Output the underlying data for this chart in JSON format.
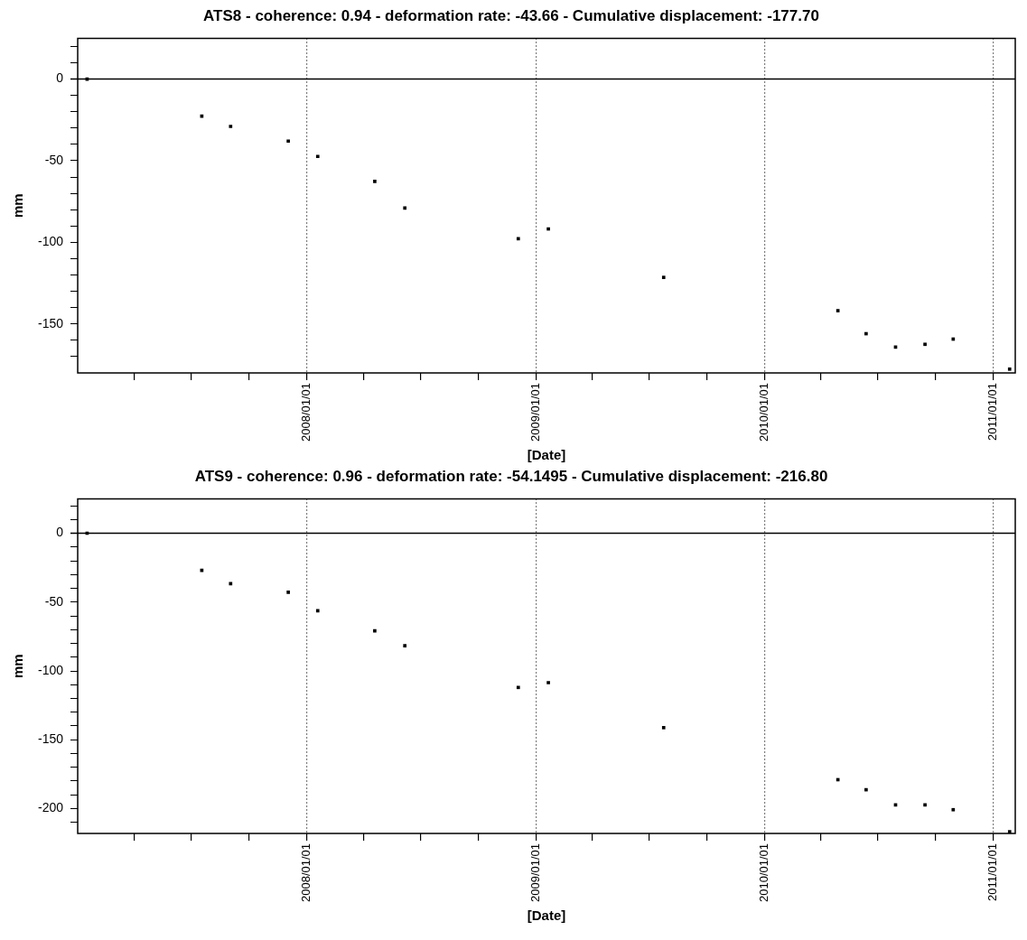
{
  "chart_data": [
    {
      "type": "scatter",
      "title": "ATS8 - coherence: 0.94 - deformation rate: -43.66 - Cumulative displacement: -177.70",
      "xlabel": "[Date]",
      "ylabel": "mm",
      "marker": "square",
      "grid": "x",
      "x": [
        "2007-01-16",
        "2007-07-18",
        "2007-09-02",
        "2007-12-03",
        "2008-01-19",
        "2008-04-19",
        "2008-06-06",
        "2008-12-04",
        "2009-01-21",
        "2009-07-24",
        "2010-04-28",
        "2010-06-12",
        "2010-07-29",
        "2010-09-14",
        "2010-10-29",
        "2011-01-27"
      ],
      "series": [
        {
          "color": "#000000",
          "values": [
            0,
            -22.7,
            -29,
            -38,
            -47.4,
            -62.7,
            -79,
            -97.8,
            -91.8,
            -121.5,
            -141.9,
            -156,
            -164.2,
            -162.5,
            -159.3,
            -177.7
          ]
        }
      ],
      "xlim": [
        "2007-01-01",
        "2011-02-05"
      ],
      "xticks": [
        {
          "value": "2007-04-01",
          "label": null
        },
        {
          "value": "2007-07-01",
          "label": null
        },
        {
          "value": "2007-10-01",
          "label": null
        },
        {
          "value": "2008-01-01",
          "label": "2008/01/01"
        },
        {
          "value": "2008-04-01",
          "label": null
        },
        {
          "value": "2008-07-01",
          "label": null
        },
        {
          "value": "2008-10-01",
          "label": null
        },
        {
          "value": "2009-01-01",
          "label": "2009/01/01"
        },
        {
          "value": "2009-04-01",
          "label": null
        },
        {
          "value": "2009-07-01",
          "label": null
        },
        {
          "value": "2009-10-01",
          "label": null
        },
        {
          "value": "2010-01-01",
          "label": "2010/01/01"
        },
        {
          "value": "2010-04-01",
          "label": null
        },
        {
          "value": "2010-07-01",
          "label": null
        },
        {
          "value": "2010-10-01",
          "label": null
        },
        {
          "value": "2011-01-01",
          "label": "2011/01/01"
        }
      ],
      "ylim": [
        -180,
        25
      ],
      "yticks": [
        {
          "value": 20,
          "label": null
        },
        {
          "value": 10,
          "label": null
        },
        0,
        {
          "value": -10,
          "label": null
        },
        {
          "value": -20,
          "label": null
        },
        {
          "value": -30,
          "label": null
        },
        {
          "value": -40,
          "label": null
        },
        -50,
        {
          "value": -60,
          "label": null
        },
        {
          "value": -70,
          "label": null
        },
        {
          "value": -80,
          "label": null
        },
        {
          "value": -90,
          "label": null
        },
        -100,
        {
          "value": -110,
          "label": null
        },
        {
          "value": -120,
          "label": null
        },
        {
          "value": -130,
          "label": null
        },
        {
          "value": -140,
          "label": null
        },
        -150,
        {
          "value": -160,
          "label": null
        },
        {
          "value": -170,
          "label": null
        }
      ],
      "ref_lines": [
        {
          "axis": "y",
          "value": 0,
          "color": "#000000",
          "line_style": "solid"
        }
      ]
    },
    {
      "type": "scatter",
      "title": "ATS9 - coherence: 0.96 - deformation rate: -54.1495 - Cumulative displacement: -216.80",
      "xlabel": "[Date]",
      "ylabel": "mm",
      "marker": "square",
      "grid": "x",
      "x": [
        "2007-01-16",
        "2007-07-18",
        "2007-09-02",
        "2007-12-03",
        "2008-01-19",
        "2008-04-19",
        "2008-06-06",
        "2008-12-04",
        "2009-01-21",
        "2009-07-24",
        "2010-04-28",
        "2010-06-12",
        "2010-07-29",
        "2010-09-14",
        "2010-10-29",
        "2011-01-27"
      ],
      "series": [
        {
          "color": "#000000",
          "values": [
            0,
            -26.9,
            -36.6,
            -42.9,
            -56.3,
            -70.9,
            -81.7,
            -112,
            -108.5,
            -141.2,
            -179,
            -186.3,
            -197.3,
            -197.3,
            -200.8,
            -216.8
          ]
        }
      ],
      "xlim": [
        "2007-01-01",
        "2011-02-05"
      ],
      "xticks": [
        {
          "value": "2007-04-01",
          "label": null
        },
        {
          "value": "2007-07-01",
          "label": null
        },
        {
          "value": "2007-10-01",
          "label": null
        },
        {
          "value": "2008-01-01",
          "label": "2008/01/01"
        },
        {
          "value": "2008-04-01",
          "label": null
        },
        {
          "value": "2008-07-01",
          "label": null
        },
        {
          "value": "2008-10-01",
          "label": null
        },
        {
          "value": "2009-01-01",
          "label": "2009/01/01"
        },
        {
          "value": "2009-04-01",
          "label": null
        },
        {
          "value": "2009-07-01",
          "label": null
        },
        {
          "value": "2009-10-01",
          "label": null
        },
        {
          "value": "2010-01-01",
          "label": "2010/01/01"
        },
        {
          "value": "2010-04-01",
          "label": null
        },
        {
          "value": "2010-07-01",
          "label": null
        },
        {
          "value": "2010-10-01",
          "label": null
        },
        {
          "value": "2011-01-01",
          "label": "2011/01/01"
        }
      ],
      "ylim": [
        -218,
        25
      ],
      "yticks": [
        {
          "value": 20,
          "label": null
        },
        {
          "value": 10,
          "label": null
        },
        0,
        {
          "value": -10,
          "label": null
        },
        {
          "value": -20,
          "label": null
        },
        {
          "value": -30,
          "label": null
        },
        {
          "value": -40,
          "label": null
        },
        -50,
        {
          "value": -60,
          "label": null
        },
        {
          "value": -70,
          "label": null
        },
        {
          "value": -80,
          "label": null
        },
        {
          "value": -90,
          "label": null
        },
        -100,
        {
          "value": -110,
          "label": null
        },
        {
          "value": -120,
          "label": null
        },
        {
          "value": -130,
          "label": null
        },
        {
          "value": -140,
          "label": null
        },
        -150,
        {
          "value": -160,
          "label": null
        },
        {
          "value": -170,
          "label": null
        },
        {
          "value": -180,
          "label": null
        },
        {
          "value": -190,
          "label": null
        },
        -200,
        {
          "value": -210,
          "label": null
        }
      ],
      "ref_lines": [
        {
          "axis": "y",
          "value": 0,
          "color": "#000000",
          "line_style": "solid"
        }
      ]
    }
  ]
}
